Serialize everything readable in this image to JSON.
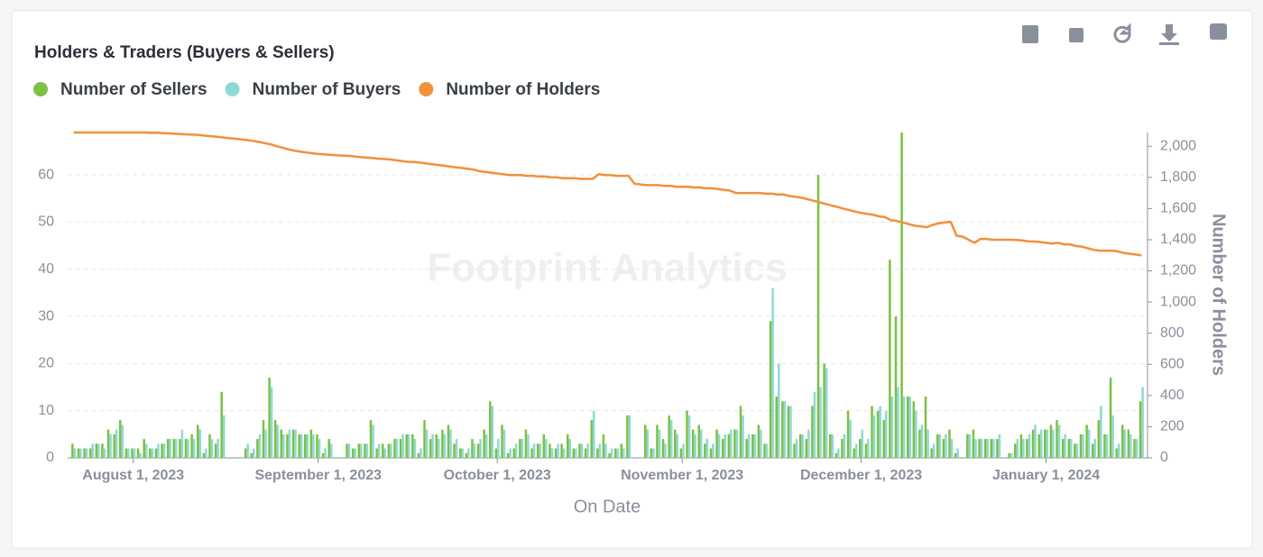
{
  "chart_data": {
    "type": "bar-line",
    "title": "Holders & Traders (Buyers & Sellers)",
    "watermark": "Footprint Analytics",
    "x_label": "On Date",
    "y2_label": "Number of Holders",
    "x": [
      "2023-07-22",
      "2023-07-23",
      "2023-07-24",
      "2023-07-25",
      "2023-07-26",
      "2023-07-27",
      "2023-07-28",
      "2023-07-29",
      "2023-07-30",
      "2023-07-31",
      "2023-08-01",
      "2023-08-02",
      "2023-08-03",
      "2023-08-04",
      "2023-08-05",
      "2023-08-06",
      "2023-08-07",
      "2023-08-08",
      "2023-08-09",
      "2023-08-10",
      "2023-08-11",
      "2023-08-12",
      "2023-08-13",
      "2023-08-14",
      "2023-08-15",
      "2023-08-16",
      "2023-08-17",
      "2023-08-18",
      "2023-08-19",
      "2023-08-20",
      "2023-08-21",
      "2023-08-22",
      "2023-08-23",
      "2023-08-24",
      "2023-08-25",
      "2023-08-26",
      "2023-08-27",
      "2023-08-28",
      "2023-08-29",
      "2023-08-30",
      "2023-08-31",
      "2023-09-01",
      "2023-09-02",
      "2023-09-03",
      "2023-09-04",
      "2023-09-05",
      "2023-09-06",
      "2023-09-07",
      "2023-09-08",
      "2023-09-09",
      "2023-09-10",
      "2023-09-11",
      "2023-09-12",
      "2023-09-13",
      "2023-09-14",
      "2023-09-15",
      "2023-09-16",
      "2023-09-17",
      "2023-09-18",
      "2023-09-19",
      "2023-09-20",
      "2023-09-21",
      "2023-09-22",
      "2023-09-23",
      "2023-09-24",
      "2023-09-25",
      "2023-09-26",
      "2023-09-27",
      "2023-09-28",
      "2023-09-29",
      "2023-09-30",
      "2023-10-01",
      "2023-10-02",
      "2023-10-03",
      "2023-10-04",
      "2023-10-05",
      "2023-10-06",
      "2023-10-07",
      "2023-10-08",
      "2023-10-09",
      "2023-10-10",
      "2023-10-11",
      "2023-10-12",
      "2023-10-13",
      "2023-10-14",
      "2023-10-15",
      "2023-10-16",
      "2023-10-17",
      "2023-10-18",
      "2023-10-19",
      "2023-10-20",
      "2023-10-21",
      "2023-10-22",
      "2023-10-23",
      "2023-10-24",
      "2023-10-25",
      "2023-10-26",
      "2023-10-27",
      "2023-10-28",
      "2023-10-29",
      "2023-10-30",
      "2023-10-31",
      "2023-11-01",
      "2023-11-02",
      "2023-11-03",
      "2023-11-04",
      "2023-11-05",
      "2023-11-06",
      "2023-11-07",
      "2023-11-08",
      "2023-11-09",
      "2023-11-10",
      "2023-11-11",
      "2023-11-12",
      "2023-11-13",
      "2023-11-14",
      "2023-11-15",
      "2023-11-16",
      "2023-11-17",
      "2023-11-18",
      "2023-11-19",
      "2023-11-20",
      "2023-11-21",
      "2023-11-22",
      "2023-11-23",
      "2023-11-24",
      "2023-11-25",
      "2023-11-26",
      "2023-11-27",
      "2023-11-28",
      "2023-11-29",
      "2023-11-30",
      "2023-12-01",
      "2023-12-02",
      "2023-12-03",
      "2023-12-04",
      "2023-12-05",
      "2023-12-06",
      "2023-12-07",
      "2023-12-08",
      "2023-12-09",
      "2023-12-10",
      "2023-12-11",
      "2023-12-12",
      "2023-12-13",
      "2023-12-14",
      "2023-12-15",
      "2023-12-16",
      "2023-12-17",
      "2023-12-18",
      "2023-12-19",
      "2023-12-20",
      "2023-12-21",
      "2023-12-22",
      "2023-12-23",
      "2023-12-24",
      "2023-12-25",
      "2023-12-26",
      "2023-12-27",
      "2023-12-28",
      "2023-12-29",
      "2023-12-30",
      "2023-12-31",
      "2024-01-01",
      "2024-01-02",
      "2024-01-03",
      "2024-01-04",
      "2024-01-05",
      "2024-01-06",
      "2024-01-07",
      "2024-01-08",
      "2024-01-09",
      "2024-01-10",
      "2024-01-11",
      "2024-01-12",
      "2024-01-13",
      "2024-01-14",
      "2024-01-15",
      "2024-01-16",
      "2024-01-17"
    ],
    "series": [
      {
        "name": "Number of Sellers",
        "color": "#7cc142",
        "values": [
          3,
          2,
          2,
          2,
          3,
          3,
          6,
          5,
          8,
          2,
          2,
          2,
          4,
          2,
          2,
          3,
          4,
          4,
          4,
          4,
          5,
          7,
          1,
          5,
          3,
          14,
          0,
          0,
          0,
          2,
          1,
          4,
          8,
          17,
          8,
          6,
          5,
          6,
          5,
          5,
          6,
          5,
          1,
          4,
          0,
          0,
          3,
          2,
          3,
          3,
          8,
          2,
          3,
          3,
          4,
          4,
          5,
          5,
          1,
          8,
          4,
          5,
          6,
          7,
          3,
          2,
          1,
          4,
          3,
          6,
          12,
          2,
          7,
          1,
          2,
          4,
          6,
          2,
          3,
          5,
          3,
          2,
          3,
          5,
          2,
          3,
          2,
          8,
          2,
          5,
          1,
          2,
          3,
          9,
          0,
          0,
          7,
          2,
          7,
          4,
          9,
          6,
          2,
          10,
          6,
          7,
          3,
          2,
          6,
          4,
          5,
          6,
          11,
          4,
          5,
          7,
          3,
          29,
          13,
          12,
          11,
          3,
          5,
          4,
          11,
          60,
          20,
          5,
          1,
          4,
          10,
          2,
          4,
          3,
          11,
          10,
          8,
          42,
          30,
          69,
          13,
          12,
          6,
          13,
          2,
          5,
          4,
          6,
          1,
          0,
          5,
          6,
          4,
          4,
          4,
          4,
          0,
          1,
          3,
          5,
          4,
          6,
          5,
          6,
          7,
          8,
          4,
          4,
          3,
          5,
          7,
          3,
          8,
          5,
          17,
          2,
          7,
          6,
          4,
          12
        ]
      },
      {
        "name": "Number of Buyers",
        "color": "#8fd9d5",
        "values": [
          2,
          2,
          2,
          3,
          3,
          2,
          5,
          6,
          7,
          2,
          2,
          1,
          3,
          2,
          3,
          3,
          4,
          4,
          6,
          4,
          4,
          6,
          2,
          4,
          4,
          9,
          0,
          0,
          0,
          3,
          2,
          5,
          6,
          15,
          7,
          5,
          6,
          6,
          5,
          5,
          5,
          4,
          2,
          3,
          0,
          0,
          3,
          2,
          3,
          3,
          7,
          3,
          2,
          3,
          4,
          5,
          5,
          4,
          2,
          6,
          5,
          4,
          5,
          6,
          4,
          2,
          2,
          3,
          4,
          5,
          11,
          4,
          6,
          2,
          3,
          4,
          5,
          3,
          3,
          4,
          2,
          3,
          2,
          4,
          2,
          3,
          3,
          10,
          3,
          3,
          2,
          2,
          2,
          9,
          0,
          0,
          6,
          2,
          6,
          3,
          8,
          5,
          3,
          9,
          5,
          6,
          4,
          3,
          5,
          5,
          6,
          6,
          9,
          5,
          5,
          6,
          3,
          36,
          20,
          12,
          11,
          4,
          5,
          6,
          14,
          15,
          19,
          5,
          2,
          5,
          8,
          3,
          6,
          4,
          9,
          11,
          10,
          13,
          15,
          13,
          13,
          10,
          7,
          6,
          3,
          5,
          5,
          4,
          2,
          0,
          5,
          4,
          4,
          4,
          4,
          5,
          0,
          1,
          4,
          4,
          5,
          7,
          6,
          6,
          6,
          7,
          5,
          4,
          3,
          5,
          6,
          4,
          11,
          5,
          9,
          3,
          6,
          5,
          4,
          15
        ]
      },
      {
        "name": "Number of Holders",
        "color": "#f0913c",
        "axis": "y2",
        "values": [
          2088,
          2088,
          2088,
          2088,
          2088,
          2088,
          2088,
          2088,
          2088,
          2088,
          2088,
          2088,
          2088,
          2086,
          2086,
          2084,
          2082,
          2080,
          2078,
          2076,
          2074,
          2072,
          2068,
          2064,
          2060,
          2056,
          2052,
          2048,
          2044,
          2040,
          2034,
          2028,
          2020,
          2012,
          2000,
          1990,
          1980,
          1972,
          1965,
          1960,
          1955,
          1950,
          1948,
          1945,
          1942,
          1940,
          1938,
          1935,
          1930,
          1928,
          1925,
          1920,
          1918,
          1915,
          1910,
          1905,
          1900,
          1898,
          1895,
          1890,
          1885,
          1880,
          1875,
          1870,
          1865,
          1860,
          1855,
          1850,
          1840,
          1835,
          1830,
          1825,
          1820,
          1815,
          1815,
          1815,
          1810,
          1810,
          1805,
          1805,
          1800,
          1800,
          1795,
          1795,
          1795,
          1790,
          1790,
          1790,
          1820,
          1815,
          1815,
          1810,
          1810,
          1810,
          1760,
          1755,
          1750,
          1750,
          1750,
          1745,
          1745,
          1740,
          1740,
          1740,
          1735,
          1735,
          1730,
          1730,
          1725,
          1720,
          1715,
          1700,
          1700,
          1700,
          1700,
          1700,
          1695,
          1695,
          1690,
          1690,
          1680,
          1675,
          1670,
          1660,
          1650,
          1640,
          1630,
          1620,
          1610,
          1600,
          1590,
          1580,
          1572,
          1565,
          1560,
          1550,
          1545,
          1525,
          1520,
          1510,
          1500,
          1490,
          1485,
          1480,
          1495,
          1505,
          1510,
          1515,
          1425,
          1420,
          1400,
          1380,
          1405,
          1405,
          1400,
          1400,
          1400,
          1400,
          1398,
          1395,
          1390,
          1388,
          1385,
          1380,
          1375,
          1380,
          1370,
          1370,
          1360,
          1355,
          1345,
          1335,
          1330,
          1330,
          1330,
          1325,
          1315,
          1310,
          1305,
          1300
        ]
      }
    ],
    "xlim": [
      "2023-07-21",
      "2024-01-18"
    ],
    "xticks": [
      {
        "value": "2023-08-01",
        "label": "August 1, 2023"
      },
      {
        "value": "2023-09-01",
        "label": "September 1, 2023"
      },
      {
        "value": "2023-10-01",
        "label": "October 1, 2023"
      },
      {
        "value": "2023-11-01",
        "label": "November 1, 2023"
      },
      {
        "value": "2023-12-01",
        "label": "December 1, 2023"
      },
      {
        "value": "2024-01-01",
        "label": "January 1, 2024"
      }
    ],
    "ylim": [
      0,
      69
    ],
    "yticks": [
      0,
      10,
      20,
      30,
      40,
      50,
      60
    ],
    "y2lim": [
      0,
      2088
    ],
    "y2ticks": [
      0,
      200,
      400,
      600,
      800,
      {
        "value": 1000,
        "label": "1,000"
      },
      {
        "value": 1200,
        "label": "1,200"
      },
      {
        "value": 1400,
        "label": "1,400"
      },
      {
        "value": 1600,
        "label": "1,600"
      },
      {
        "value": 1800,
        "label": "1,800"
      },
      {
        "value": 2000,
        "label": "2,000"
      }
    ],
    "grid": true
  }
}
